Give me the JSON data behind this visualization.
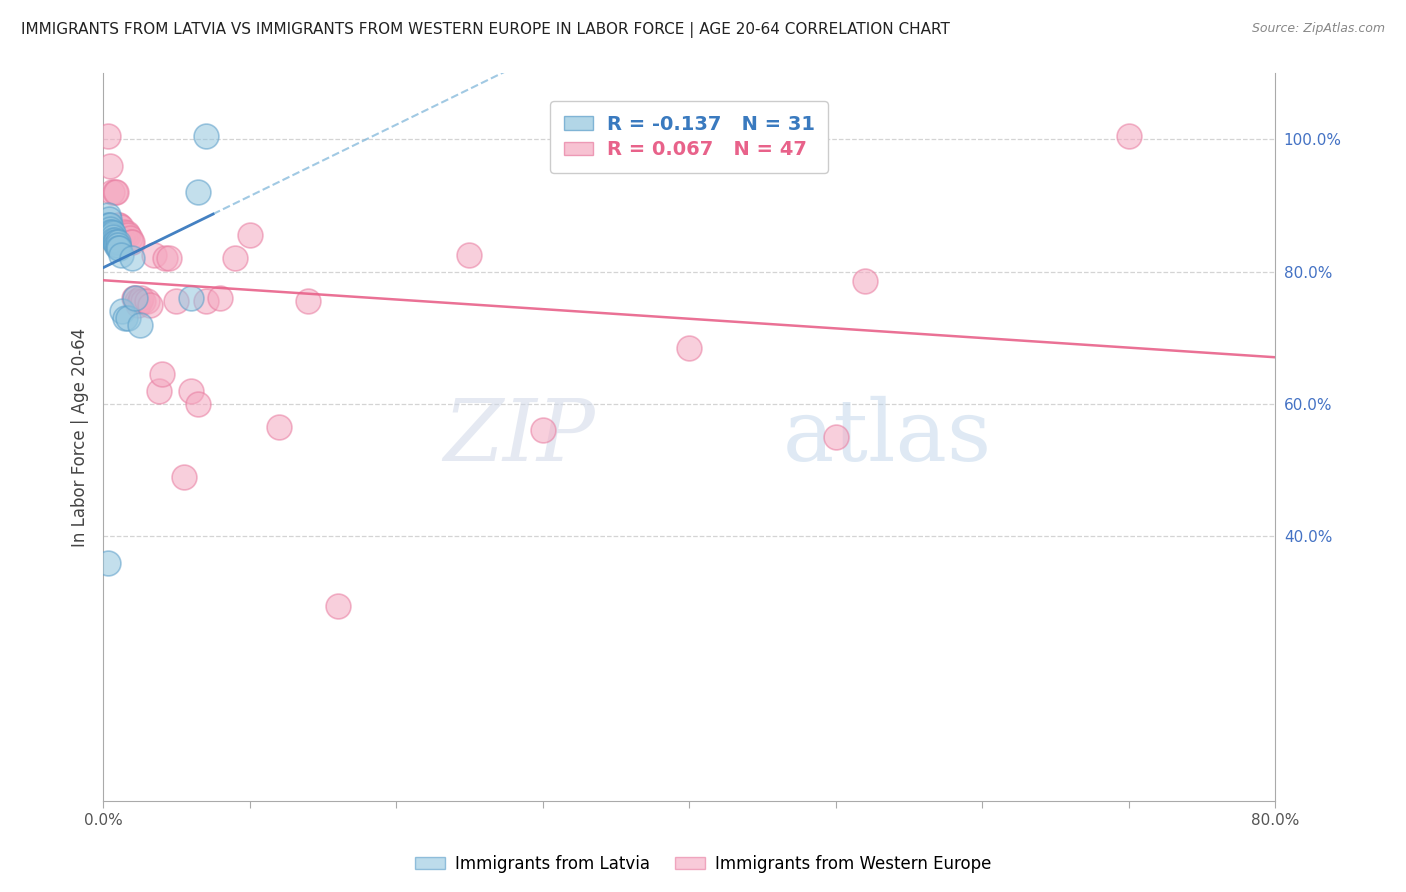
{
  "title": "IMMIGRANTS FROM LATVIA VS IMMIGRANTS FROM WESTERN EUROPE IN LABOR FORCE | AGE 20-64 CORRELATION CHART",
  "source": "Source: ZipAtlas.com",
  "ylabel": "In Labor Force | Age 20-64",
  "x_min": 0.0,
  "x_max": 0.8,
  "y_min": 0.0,
  "y_max": 1.1,
  "y_ticks_right": [
    0.4,
    0.6,
    0.8,
    1.0
  ],
  "y_tick_labels_right": [
    "40.0%",
    "60.0%",
    "80.0%",
    "100.0%"
  ],
  "latvia_R": -0.137,
  "latvia_N": 31,
  "western_R": 0.067,
  "western_N": 47,
  "latvia_color": "#92c5de",
  "western_color": "#f4a8c0",
  "latvia_edge_color": "#5b9ec9",
  "western_edge_color": "#e87ca0",
  "latvia_line_color": "#3a7abf",
  "western_line_color": "#e8628a",
  "background_color": "#ffffff",
  "grid_color": "#d0d0d0",
  "watermark_zip": "ZIP",
  "watermark_atlas": "atlas",
  "latvia_x": [
    0.002,
    0.003,
    0.004,
    0.004,
    0.005,
    0.005,
    0.005,
    0.006,
    0.006,
    0.007,
    0.007,
    0.007,
    0.008,
    0.008,
    0.009,
    0.009,
    0.01,
    0.01,
    0.01,
    0.011,
    0.012,
    0.013,
    0.015,
    0.017,
    0.02,
    0.022,
    0.025,
    0.06,
    0.065,
    0.07,
    0.003
  ],
  "latvia_y": [
    0.87,
    0.885,
    0.88,
    0.87,
    0.87,
    0.865,
    0.86,
    0.86,
    0.855,
    0.858,
    0.852,
    0.848,
    0.848,
    0.845,
    0.845,
    0.84,
    0.845,
    0.84,
    0.835,
    0.835,
    0.825,
    0.74,
    0.73,
    0.73,
    0.82,
    0.76,
    0.72,
    0.76,
    0.92,
    1.005,
    0.36
  ],
  "western_x": [
    0.003,
    0.005,
    0.006,
    0.008,
    0.009,
    0.01,
    0.011,
    0.012,
    0.013,
    0.014,
    0.015,
    0.016,
    0.017,
    0.018,
    0.019,
    0.02,
    0.021,
    0.022,
    0.023,
    0.024,
    0.025,
    0.026,
    0.027,
    0.03,
    0.032,
    0.035,
    0.038,
    0.04,
    0.042,
    0.045,
    0.05,
    0.055,
    0.06,
    0.065,
    0.07,
    0.08,
    0.09,
    0.1,
    0.12,
    0.14,
    0.16,
    0.25,
    0.3,
    0.4,
    0.5,
    0.52,
    0.7
  ],
  "western_y": [
    1.005,
    0.96,
    0.92,
    0.92,
    0.92,
    0.87,
    0.87,
    0.868,
    0.85,
    0.86,
    0.855,
    0.858,
    0.855,
    0.85,
    0.845,
    0.845,
    0.76,
    0.76,
    0.755,
    0.75,
    0.755,
    0.76,
    0.755,
    0.755,
    0.75,
    0.825,
    0.62,
    0.645,
    0.82,
    0.82,
    0.755,
    0.49,
    0.62,
    0.6,
    0.755,
    0.76,
    0.82,
    0.855,
    0.565,
    0.755,
    0.295,
    0.825,
    0.56,
    0.685,
    0.55,
    0.785,
    1.005
  ],
  "latvia_line_x_solid_end": 0.075,
  "western_line_x_solid_end": 0.8
}
